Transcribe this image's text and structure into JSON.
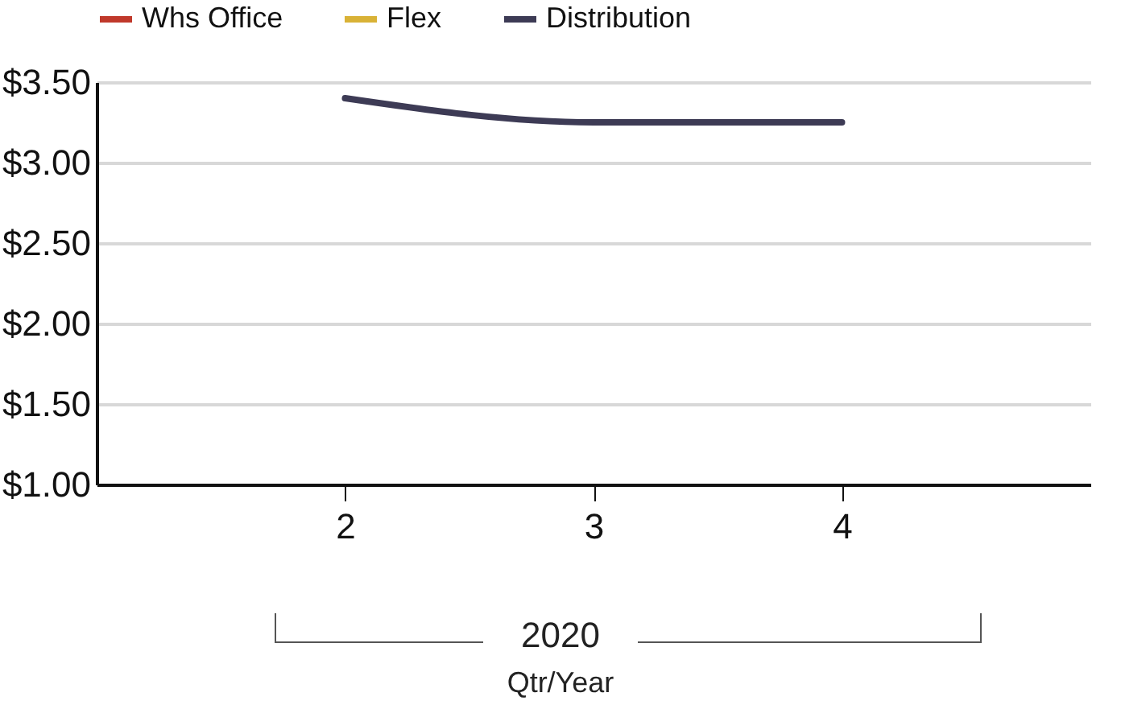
{
  "chart_data": {
    "type": "line",
    "xlabel": "Qtr/Year",
    "categories": [
      "2",
      "3",
      "4"
    ],
    "series": [
      {
        "name": "Whs Office",
        "color": "#c0392b",
        "values": [
          null,
          null,
          null
        ]
      },
      {
        "name": "Flex",
        "color": "#d9b236",
        "values": [
          null,
          null,
          null
        ]
      },
      {
        "name": "Distribution",
        "color": "#3d3b55",
        "values": [
          3.4,
          3.25,
          3.25
        ]
      }
    ],
    "ylim": [
      1,
      3.5
    ],
    "yticks": [
      {
        "value": 1,
        "label": "$1.00"
      },
      {
        "value": 1.5,
        "label": "$1.50"
      },
      {
        "value": 2,
        "label": "$2.00"
      },
      {
        "value": 2.5,
        "label": "$2.50"
      },
      {
        "value": 3,
        "label": "$3.00"
      },
      {
        "value": 3.5,
        "label": "$3.50"
      }
    ],
    "grid": "y",
    "legend": "top",
    "marker": "none",
    "line_style": "solid",
    "annotations": [
      "2020"
    ]
  }
}
